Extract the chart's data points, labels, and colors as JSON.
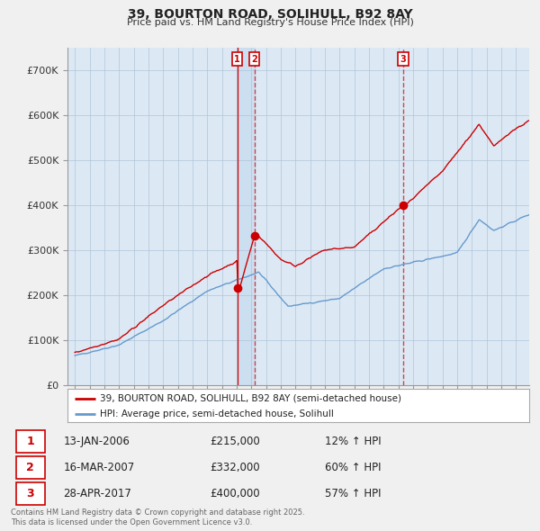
{
  "title": "39, BOURTON ROAD, SOLIHULL, B92 8AY",
  "subtitle": "Price paid vs. HM Land Registry's House Price Index (HPI)",
  "red_label": "39, BOURTON ROAD, SOLIHULL, B92 8AY (semi-detached house)",
  "blue_label": "HPI: Average price, semi-detached house, Solihull",
  "footer": "Contains HM Land Registry data © Crown copyright and database right 2025.\nThis data is licensed under the Open Government Licence v3.0.",
  "transactions": [
    {
      "num": 1,
      "date": "13-JAN-2006",
      "price": 215000,
      "hpi_change": "12% ↑ HPI",
      "year": 2006.04
    },
    {
      "num": 2,
      "date": "16-MAR-2007",
      "price": 332000,
      "hpi_change": "60% ↑ HPI",
      "year": 2007.21
    },
    {
      "num": 3,
      "date": "28-APR-2017",
      "price": 400000,
      "hpi_change": "57% ↑ HPI",
      "year": 2017.33
    }
  ],
  "ylim": [
    0,
    750000
  ],
  "yticks": [
    0,
    100000,
    200000,
    300000,
    400000,
    500000,
    600000,
    700000
  ],
  "ytick_labels": [
    "£0",
    "£100K",
    "£200K",
    "£300K",
    "£400K",
    "£500K",
    "£600K",
    "£700K"
  ],
  "background_color": "#f0f0f0",
  "plot_bg_color": "#dce9f5",
  "grid_color": "#b0c4d8",
  "red_color": "#cc0000",
  "blue_color": "#6699cc",
  "shade_color": "#c8ddf0",
  "xlim_left": 1994.5,
  "xlim_right": 2025.9
}
